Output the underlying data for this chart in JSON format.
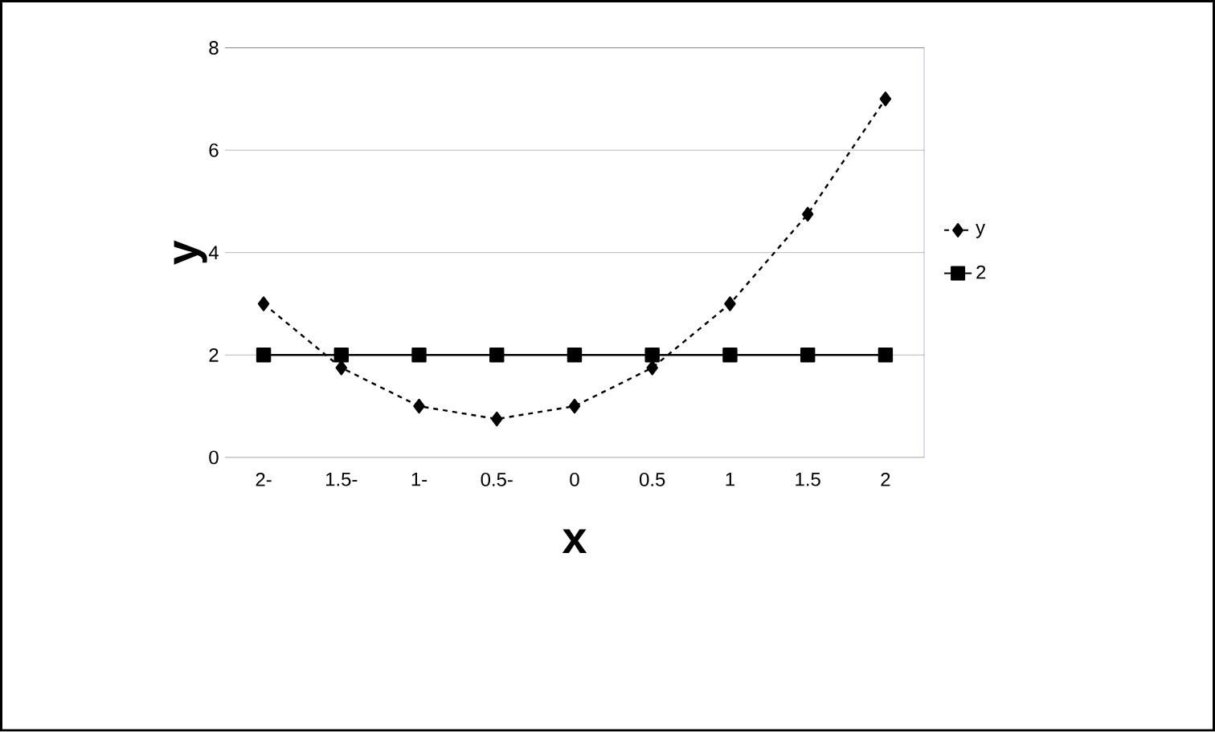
{
  "chart_data": {
    "type": "line",
    "xlabel": "x",
    "ylabel": "y",
    "categories": [
      "2-",
      "1.5-",
      "1-",
      "0.5-",
      "0",
      "0.5",
      "1",
      "1.5",
      "2"
    ],
    "series": [
      {
        "name": "y",
        "color": "#000000",
        "marker": "diamond",
        "line_style": "dashed",
        "values": [
          3,
          1.75,
          1,
          0.75,
          1,
          1.75,
          3,
          4.75,
          7
        ]
      },
      {
        "name": "2",
        "color": "#000000",
        "marker": "square",
        "line_style": "solid",
        "values": [
          2,
          2,
          2,
          2,
          2,
          2,
          2,
          2,
          2
        ]
      }
    ],
    "ylim": [
      0,
      8
    ],
    "yticks": [
      0,
      2,
      4,
      6,
      8
    ],
    "grid": "y",
    "legend": "right"
  }
}
